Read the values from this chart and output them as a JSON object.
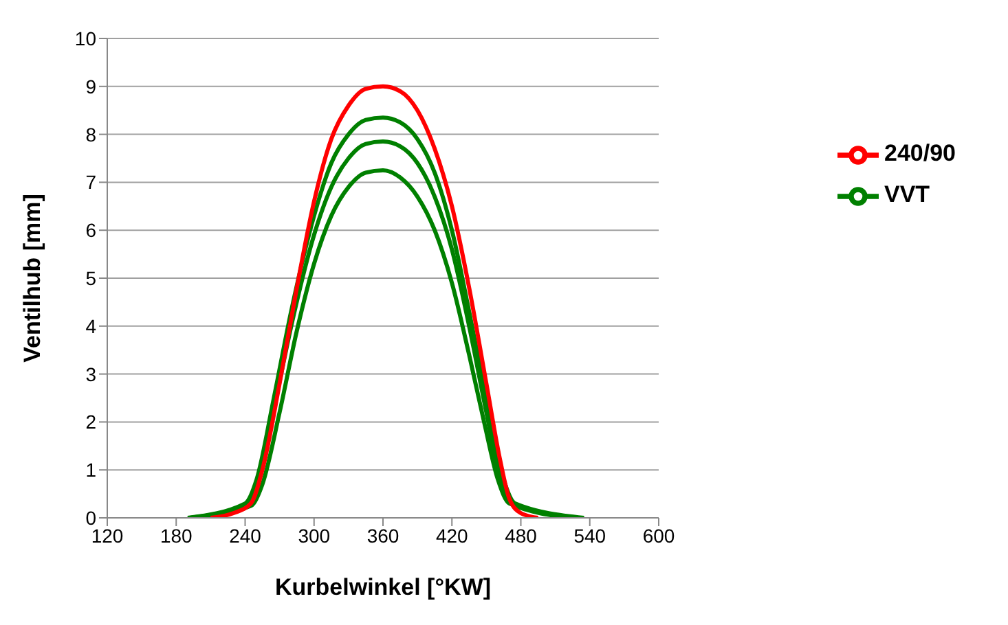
{
  "chart_data": {
    "type": "line",
    "xlabel": "Kurbelwinkel [°KW]",
    "ylabel": "Ventilhub [mm]",
    "xlim": [
      120,
      600
    ],
    "xticks": [
      120,
      180,
      240,
      300,
      360,
      420,
      480,
      540,
      600
    ],
    "ylim": [
      0,
      10
    ],
    "yticks": [
      0,
      1,
      2,
      3,
      4,
      5,
      6,
      7,
      8,
      9,
      10
    ],
    "grid": "y",
    "legend": "right",
    "marker": "none",
    "series": [
      {
        "name": "240/90",
        "color": "#ff0000",
        "x": [
          210,
          230,
          245,
          255,
          270,
          285,
          300,
          315,
          330,
          345,
          360,
          375,
          390,
          405,
          420,
          435,
          450,
          462,
          470,
          480,
          495
        ],
        "values": [
          0,
          0.1,
          0.3,
          1,
          2.8,
          4.8,
          6.6,
          7.9,
          8.6,
          8.95,
          9.0,
          8.9,
          8.5,
          7.7,
          6.5,
          4.8,
          2.8,
          1.2,
          0.4,
          0.1,
          0
        ]
      },
      {
        "name": "VVT",
        "color": "#008000",
        "x": [
          190,
          240,
          250,
          265,
          280,
          300,
          315,
          330,
          345,
          360,
          375,
          390,
          405,
          420,
          435,
          450,
          465,
          475,
          535
        ],
        "values": [
          0,
          0.3,
          0.8,
          2.5,
          4.3,
          6.3,
          7.4,
          8.0,
          8.3,
          8.35,
          8.25,
          7.9,
          7.2,
          6.0,
          4.3,
          2.5,
          0.8,
          0.3,
          0
        ]
      },
      {
        "color": "#008000",
        "x": [
          192,
          242,
          252,
          267,
          282,
          300,
          315,
          330,
          345,
          360,
          375,
          390,
          405,
          420,
          435,
          450,
          463,
          473,
          530
        ],
        "values": [
          0,
          0.3,
          0.8,
          2.5,
          4.2,
          5.9,
          6.9,
          7.5,
          7.8,
          7.85,
          7.75,
          7.4,
          6.7,
          5.6,
          4.0,
          2.2,
          0.7,
          0.3,
          0
        ]
      },
      {
        "color": "#008000",
        "x": [
          195,
          245,
          255,
          270,
          285,
          300,
          315,
          330,
          345,
          360,
          375,
          390,
          405,
          420,
          435,
          448,
          460,
          470,
          525
        ],
        "values": [
          0,
          0.25,
          0.7,
          2.2,
          3.9,
          5.3,
          6.3,
          6.9,
          7.2,
          7.25,
          7.1,
          6.7,
          6.0,
          4.9,
          3.4,
          2.0,
          0.8,
          0.3,
          0
        ]
      }
    ]
  }
}
